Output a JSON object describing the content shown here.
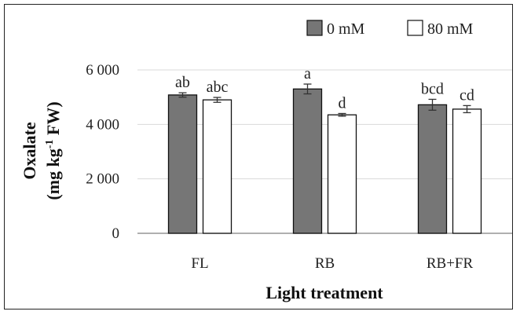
{
  "chart_data": {
    "type": "bar",
    "categories": [
      "FL",
      "RB",
      "RB+FR"
    ],
    "series": [
      {
        "name": "0 mM",
        "color": "#767676",
        "values": [
          5080,
          5300,
          4720
        ],
        "errors": [
          80,
          180,
          200
        ],
        "letters": [
          "ab",
          "a",
          "bcd"
        ]
      },
      {
        "name": "80 mM",
        "color": "#ffffff",
        "values": [
          4900,
          4350,
          4560
        ],
        "errors": [
          90,
          50,
          130
        ],
        "letters": [
          "abc",
          "d",
          "cd"
        ]
      }
    ],
    "xlabel": "Light treatment",
    "ylabel_line1": "Oxalate",
    "ylabel_line2_main": "(mg kg",
    "ylabel_line2_sup": "-1",
    "ylabel_line2_end": " FW)",
    "ylim": [
      0,
      6000
    ],
    "yticks": [
      0,
      2000,
      4000,
      6000
    ],
    "ytick_labels": [
      "0",
      "2 000",
      "4 000",
      "6 000"
    ],
    "grid": true,
    "legend_position": "top-right"
  }
}
